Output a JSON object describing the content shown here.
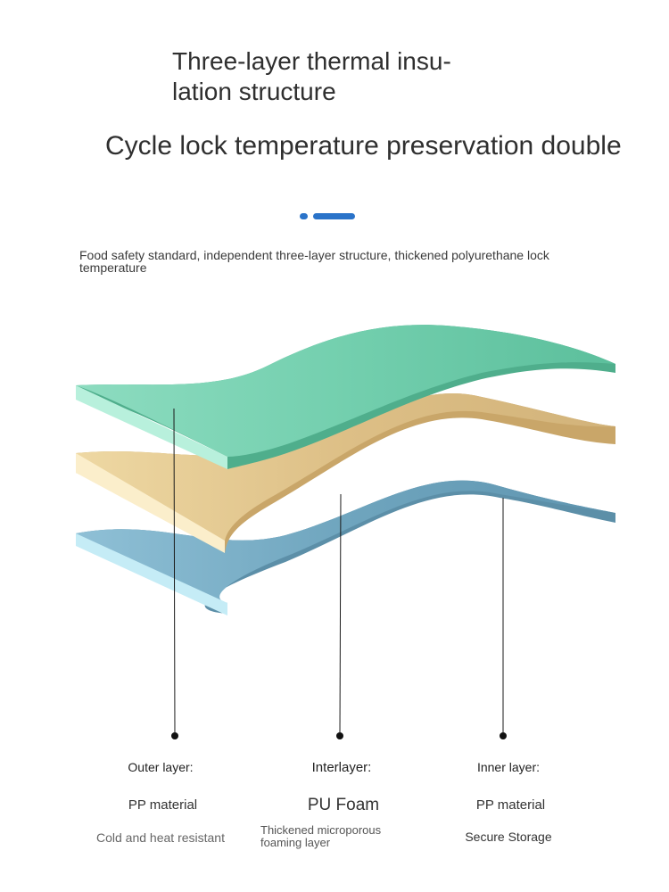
{
  "header": {
    "title_line1": "Three-layer thermal insu-",
    "title_line2": "lation structure",
    "headline": "Cycle lock temperature preservation double",
    "subtitle": "Food safety standard, independent three-layer structure, thickened polyurethane lock temperature"
  },
  "colors": {
    "accent": "#2a73c9",
    "outer_layer": "#7dd1b3",
    "interlayer": "#e6c98f",
    "inner_layer": "#77a9c0"
  },
  "layers": [
    {
      "name": "Outer layer:",
      "material": "PP material",
      "description": "Cold and heat resistant"
    },
    {
      "name": "Interlayer:",
      "material": "PU Foam",
      "description": "Thickened microporous foaming layer"
    },
    {
      "name": "Inner layer:",
      "material": "PP material",
      "description": "Secure Storage"
    }
  ]
}
